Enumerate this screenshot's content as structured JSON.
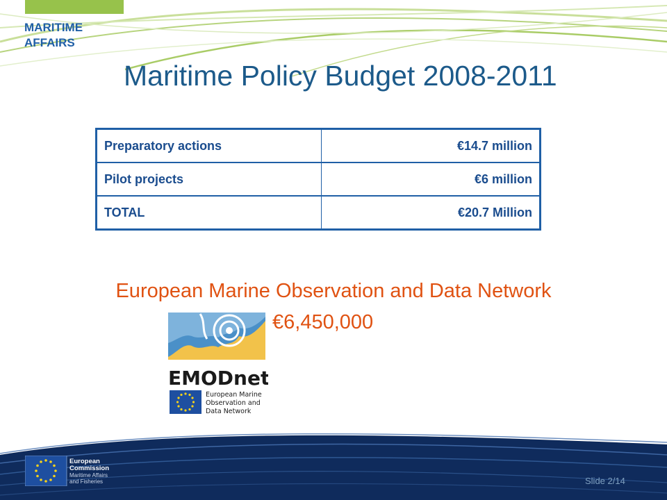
{
  "header": {
    "dept_line1": "MARITIME",
    "dept_line2": "AFFAIRS"
  },
  "slide": {
    "title": "Maritime Policy Budget 2008-2011"
  },
  "budget_table": {
    "rows": [
      {
        "label": "Preparatory actions",
        "amount": "€14.7 million"
      },
      {
        "label": "Pilot projects",
        "amount": "€6 million"
      },
      {
        "label": "TOTAL",
        "amount": "€20.7 Million"
      }
    ]
  },
  "network": {
    "title": "European Marine Observation and Data Network",
    "amount": "€6,450,000"
  },
  "emodnet_logo": {
    "wordmark": "EMODnet",
    "tag_line1": "European Marine",
    "tag_line2": "Observation and",
    "tag_line3": "Data Network"
  },
  "footer": {
    "ec_line1": "European",
    "ec_line2": "Commission",
    "ec_line3": "Maritime Affairs",
    "ec_line4": "and Fisheries",
    "slide_number": "Slide 2/14"
  },
  "colors": {
    "title_blue": "#1c5a8a",
    "table_border": "#1f5fa6",
    "accent_orange": "#e05212",
    "green": "#97c24b",
    "footer_navy": "#0f2b5c"
  }
}
